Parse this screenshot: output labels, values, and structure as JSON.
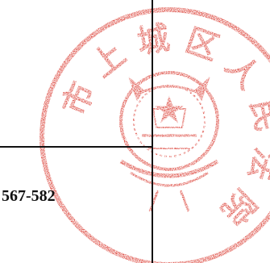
{
  "document": {
    "page_reference": "567-582",
    "seal_text": "市上城区人民法院",
    "seal_icon": "court-emblem-icon"
  },
  "colors": {
    "seal": "#d9362c",
    "lines": "#111111",
    "text": "#111111",
    "background": "#ffffff"
  }
}
